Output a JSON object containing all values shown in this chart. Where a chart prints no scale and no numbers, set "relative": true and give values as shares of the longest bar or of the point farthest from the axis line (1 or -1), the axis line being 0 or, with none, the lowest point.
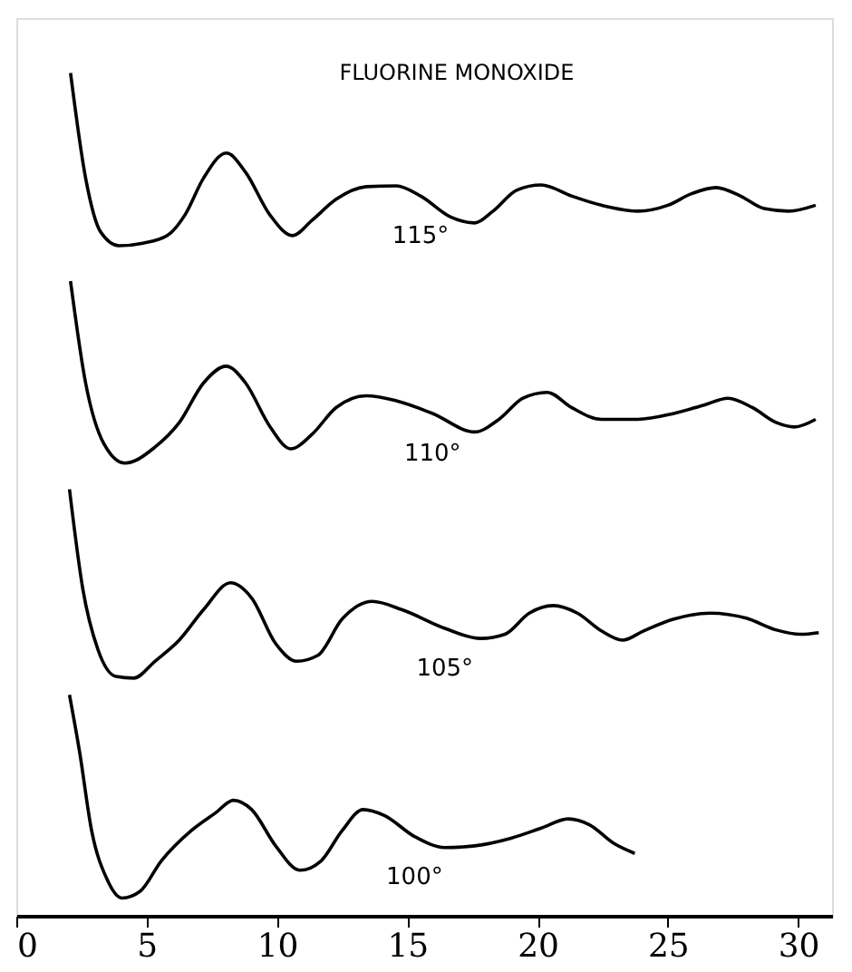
{
  "chart_data": {
    "type": "line",
    "title": "FLUORINE MONOXIDE",
    "relative": true,
    "legend": false,
    "grid": false,
    "marker": "none",
    "line_style": "solid",
    "xlim": [
      0,
      31.3
    ],
    "xticks": [
      0,
      5,
      10,
      15,
      20,
      25,
      30
    ],
    "series": [
      {
        "name": "115°",
        "color": "#000000",
        "x": [
          2.08,
          2.66,
          3.24,
          3.94,
          4.86,
          5.79,
          6.48,
          7.18,
          8.06,
          8.8,
          9.72,
          10.6,
          11.34,
          12.27,
          13.43,
          14.58,
          15.51,
          16.67,
          17.59,
          18.29,
          19.21,
          20.14,
          21.3,
          22.45,
          23.84,
          25.0,
          25.93,
          26.85,
          27.78,
          28.7,
          29.63,
          30.67
        ],
        "values": [
          1.0,
          0.875,
          0.811,
          0.795,
          0.798,
          0.807,
          0.832,
          0.875,
          0.905,
          0.882,
          0.832,
          0.807,
          0.825,
          0.85,
          0.865,
          0.866,
          0.854,
          0.829,
          0.822,
          0.836,
          0.861,
          0.867,
          0.854,
          0.843,
          0.836,
          0.843,
          0.857,
          0.864,
          0.854,
          0.839,
          0.836,
          0.843
        ]
      },
      {
        "name": "110°",
        "color": "#000000",
        "x": [
          2.08,
          2.66,
          3.36,
          4.17,
          5.32,
          6.25,
          7.18,
          8.06,
          8.8,
          9.72,
          10.53,
          11.34,
          12.27,
          13.43,
          14.58,
          15.97,
          17.59,
          18.52,
          19.44,
          20.37,
          21.3,
          22.45,
          23.84,
          25.23,
          26.39,
          27.31,
          28.24,
          29.17,
          29.86,
          30.67
        ],
        "values": [
          0.753,
          0.632,
          0.56,
          0.537,
          0.556,
          0.585,
          0.632,
          0.652,
          0.632,
          0.581,
          0.554,
          0.571,
          0.603,
          0.617,
          0.611,
          0.596,
          0.574,
          0.589,
          0.614,
          0.621,
          0.603,
          0.589,
          0.589,
          0.596,
          0.606,
          0.614,
          0.603,
          0.585,
          0.58,
          0.589
        ]
      },
      {
        "name": "105°",
        "color": "#000000",
        "x": [
          2.04,
          2.55,
          3.13,
          3.82,
          4.51,
          5.32,
          6.25,
          7.18,
          8.22,
          9.03,
          9.95,
          10.76,
          11.57,
          12.5,
          13.66,
          14.81,
          16.44,
          17.82,
          18.75,
          19.68,
          20.6,
          21.53,
          22.45,
          23.26,
          24.07,
          25.23,
          26.62,
          28.01,
          29.17,
          30.09,
          30.79
        ],
        "values": [
          0.506,
          0.388,
          0.316,
          0.284,
          0.282,
          0.302,
          0.327,
          0.363,
          0.395,
          0.377,
          0.323,
          0.302,
          0.309,
          0.352,
          0.373,
          0.363,
          0.341,
          0.329,
          0.334,
          0.359,
          0.368,
          0.359,
          0.338,
          0.327,
          0.338,
          0.352,
          0.359,
          0.353,
          0.339,
          0.334,
          0.336
        ]
      },
      {
        "name": "100°",
        "color": "#000000",
        "x": [
          2.04,
          2.43,
          2.89,
          3.47,
          4.05,
          4.75,
          5.56,
          6.71,
          7.64,
          8.33,
          9.03,
          9.95,
          10.88,
          11.69,
          12.5,
          13.31,
          14.12,
          15.28,
          16.44,
          17.59,
          18.98,
          20.14,
          21.18,
          21.99,
          22.92,
          23.73
        ],
        "values": [
          0.262,
          0.194,
          0.101,
          0.044,
          0.021,
          0.029,
          0.065,
          0.101,
          0.122,
          0.137,
          0.126,
          0.083,
          0.054,
          0.065,
          0.101,
          0.126,
          0.119,
          0.094,
          0.081,
          0.083,
          0.092,
          0.104,
          0.115,
          0.108,
          0.086,
          0.074
        ]
      }
    ]
  }
}
